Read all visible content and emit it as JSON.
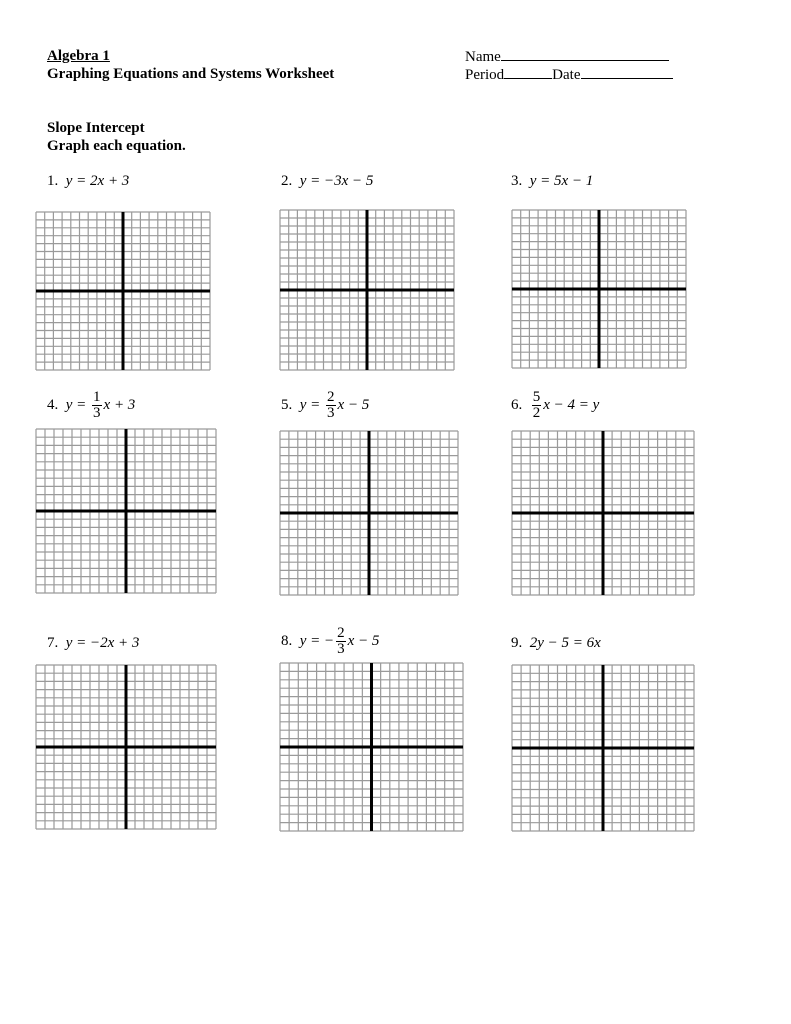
{
  "header": {
    "course": "Algebra 1",
    "title": "Graphing Equations and Systems Worksheet",
    "name_label": "Name",
    "period_label": "Period",
    "date_label": "Date"
  },
  "section": {
    "title": "Slope Intercept",
    "instruction": "Graph each equation."
  },
  "problems": [
    {
      "num": "1.",
      "pre": "y = 2x + 3"
    },
    {
      "num": "2.",
      "pre": "y = −3x − 5"
    },
    {
      "num": "3.",
      "pre": "y = 5x − 1"
    },
    {
      "num": "4.",
      "pre": "y = ",
      "fnum": "1",
      "fden": "3",
      "post": "x + 3"
    },
    {
      "num": "5.",
      "pre": "y = ",
      "fnum": "2",
      "fden": "3",
      "post": "x − 5"
    },
    {
      "num": "6.",
      "pre": "",
      "fnum": "5",
      "fden": "2",
      "post": "x − 4 = y"
    },
    {
      "num": "7.",
      "pre": "y = −2x + 3"
    },
    {
      "num": "8.",
      "pre": "y = −",
      "fnum": "2",
      "fden": "3",
      "post": "x − 5"
    },
    {
      "num": "9.",
      "pre": "2y − 5 = 6x"
    }
  ],
  "grid": {
    "cells": 20,
    "line_color": "#9a9a9a",
    "axis_color": "#000000"
  }
}
